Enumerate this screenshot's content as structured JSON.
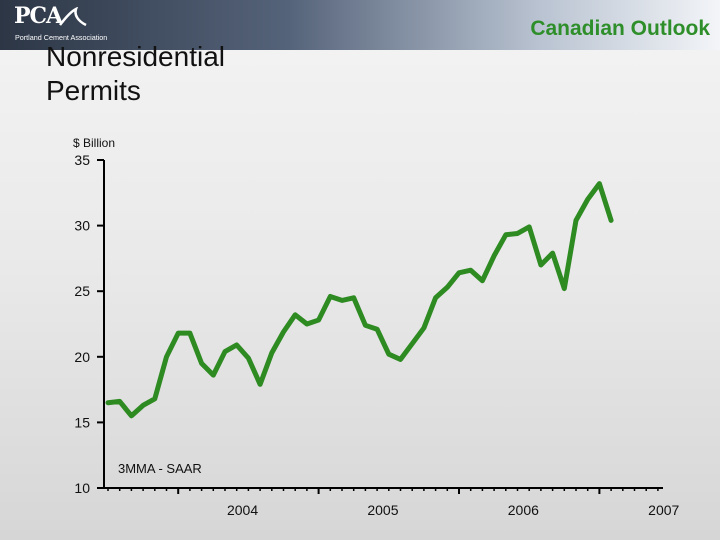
{
  "header": {
    "logo_text": "PCA",
    "logo_subtitle": "Portland Cement Association",
    "section_title": "Canadian Outlook"
  },
  "slide": {
    "title_line1": "Nonresidential",
    "title_line2": "Permits"
  },
  "colors": {
    "line": "#2e8b22",
    "header_accent": "#2e8f2a",
    "axis": "#000000"
  },
  "chart_data": {
    "type": "line",
    "title": "",
    "xlabel": "",
    "ylabel": "$ Billion",
    "annotation": "3MMA - SAAR",
    "ylim": [
      10,
      35
    ],
    "yticks": [
      10,
      15,
      20,
      25,
      30,
      35
    ],
    "year_labels": [
      "2004",
      "2005",
      "2006",
      "2007"
    ],
    "start": "2003-07",
    "frequency": "monthly",
    "grid": false,
    "series": [
      {
        "values": [
          16.5,
          16.6,
          15.5,
          16.3,
          16.8,
          20.0,
          21.8,
          21.8,
          19.5,
          18.6,
          20.4,
          20.9,
          19.9,
          17.9,
          20.3,
          21.9,
          23.2,
          22.5,
          22.8,
          24.6,
          24.3,
          24.5,
          22.4,
          22.1,
          20.2,
          19.8,
          21.0,
          22.2,
          24.5,
          25.3,
          26.4,
          26.6,
          25.8,
          27.7,
          29.3,
          29.4,
          29.9,
          27.0,
          27.9,
          25.2,
          30.4,
          32.0,
          33.2,
          30.4
        ]
      }
    ]
  }
}
